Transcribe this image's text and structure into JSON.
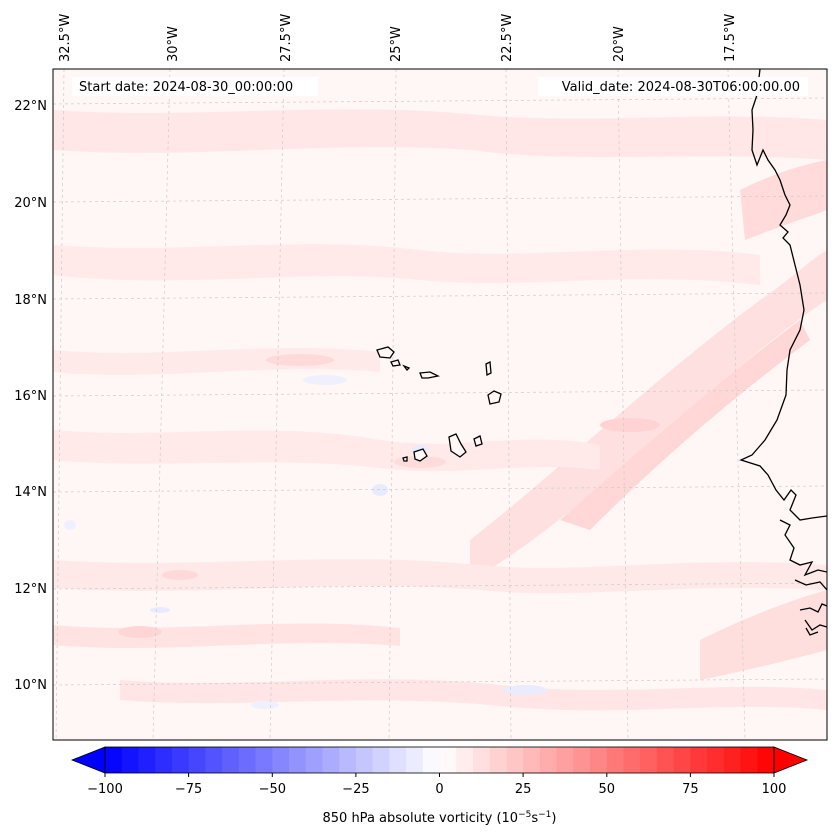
{
  "map": {
    "header": {
      "start_date": "Start date: 2024-08-30_00:00:00",
      "valid_date": "Valid_date: 2024-08-30T06:00:00.00"
    },
    "lon_labels": [
      "32.5°W",
      "30°W",
      "27.5°W",
      "25°W",
      "22.5°W",
      "20°W",
      "17.5°W"
    ],
    "lat_labels": [
      "22°N",
      "20°N",
      "18°N",
      "16°N",
      "14°N",
      "12°N",
      "10°N"
    ],
    "colorbar": {
      "label_prefix": "850 hPa absolute vorticity (10",
      "exp1": "−5",
      "unit_mid": "s",
      "exp2": "−1",
      "label_suffix": ")",
      "ticks": [
        "−100",
        "−75",
        "−50",
        "−25",
        "0",
        "25",
        "50",
        "75",
        "100"
      ],
      "min": -100,
      "max": 100,
      "levels": 40,
      "low_color": "#0000ff",
      "mid_color": "#ffffff",
      "high_color": "#ff0000"
    },
    "background_color": "#fff5f5",
    "coast_color": "#000000",
    "grid_color": "#cccccc"
  }
}
